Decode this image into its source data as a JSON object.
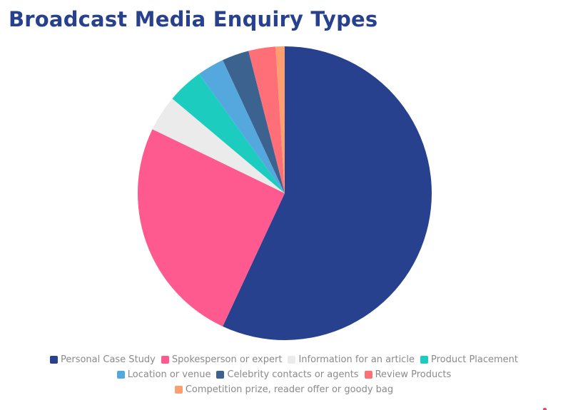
{
  "chart_data": {
    "type": "pie",
    "title": "Broadcast Media Enquiry Types",
    "legend_position": "bottom",
    "slices": [
      {
        "label": "Personal Case Study",
        "value": 57.5,
        "color": "#27418f"
      },
      {
        "label": "Spokesperson or expert",
        "value": 25.5,
        "color": "#fe5a8f"
      },
      {
        "label": "Information for an article",
        "value": 4.0,
        "color": "#ebebeb"
      },
      {
        "label": "Product Placement",
        "value": 4.0,
        "color": "#1ccdbf"
      },
      {
        "label": "Location or venue",
        "value": 3.0,
        "color": "#55a8dd"
      },
      {
        "label": "Celebrity contacts or agents",
        "value": 3.0,
        "color": "#3c638f"
      },
      {
        "label": "Review Products",
        "value": 3.0,
        "color": "#ff6f78"
      },
      {
        "label": "Competition prize, reader offer or goody bag",
        "value": 1.0,
        "color": "#ff9e6e"
      }
    ]
  }
}
